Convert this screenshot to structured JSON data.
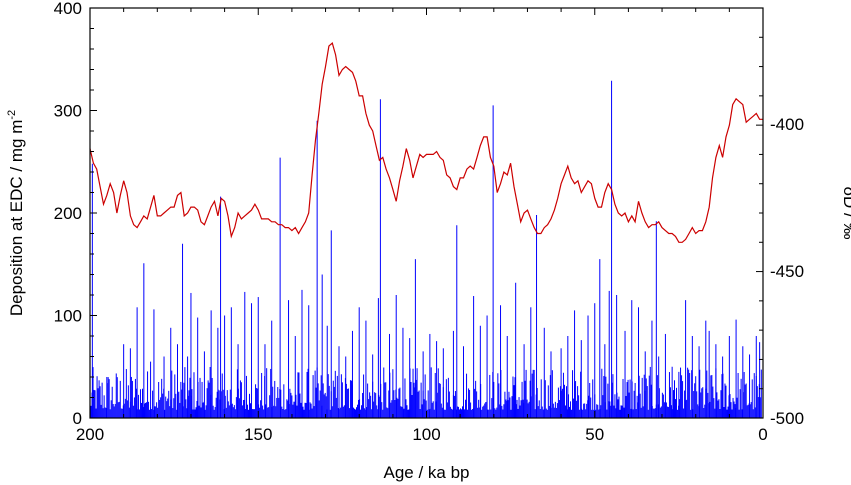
{
  "chart_data": {
    "type": "line",
    "xlabel": "Age / ka bp",
    "ylabel_left": {
      "text": "Deposition at EDC / mg m",
      "superscript": "-2"
    },
    "ylabel_right": "δD / ‰",
    "x_ticks": [
      "200",
      "150",
      "100",
      "50",
      "0"
    ],
    "y_left_ticks": [
      "0",
      "100",
      "200",
      "300",
      "400"
    ],
    "y_right_ticks": [
      "-400",
      "-450",
      "-500"
    ],
    "xlim": [
      200,
      0
    ],
    "ylim_left": [
      0,
      400
    ],
    "ylim_right": [
      -500,
      -360
    ],
    "grid": false,
    "colors": {
      "deposition": "#0000ff",
      "deltaD": "#cc0000",
      "axes": "#000000"
    },
    "series": [
      {
        "key": "deposition",
        "axis": "left",
        "style": "bars",
        "peaks": [
          [
            199.3,
            248
          ],
          [
            195,
            40
          ],
          [
            190,
            72
          ],
          [
            188,
            68
          ],
          [
            186,
            108
          ],
          [
            184,
            151
          ],
          [
            182,
            55
          ],
          [
            181,
            106
          ],
          [
            178,
            60
          ],
          [
            176,
            88
          ],
          [
            174,
            72
          ],
          [
            172.5,
            170
          ],
          [
            171,
            60
          ],
          [
            170,
            122
          ],
          [
            168,
            98
          ],
          [
            166,
            65
          ],
          [
            164,
            105
          ],
          [
            162,
            88
          ],
          [
            161.2,
            216
          ],
          [
            160,
            100
          ],
          [
            158,
            108
          ],
          [
            156,
            72
          ],
          [
            154,
            123
          ],
          [
            152,
            112
          ],
          [
            150,
            118
          ],
          [
            148,
            72
          ],
          [
            146,
            95
          ],
          [
            143.5,
            254
          ],
          [
            141,
            115
          ],
          [
            139,
            80
          ],
          [
            137,
            125
          ],
          [
            135,
            110
          ],
          [
            132.5,
            290
          ],
          [
            131,
            140
          ],
          [
            129.5,
            90
          ],
          [
            128.3,
            183
          ],
          [
            126,
            70
          ],
          [
            124,
            60
          ],
          [
            122,
            85
          ],
          [
            120,
            108
          ],
          [
            118,
            95
          ],
          [
            116,
            62
          ],
          [
            114.3,
            117
          ],
          [
            113.7,
            311
          ],
          [
            111,
            82
          ],
          [
            109,
            120
          ],
          [
            107,
            88
          ],
          [
            105,
            78
          ],
          [
            103.3,
            155
          ],
          [
            101,
            65
          ],
          [
            99,
            82
          ],
          [
            97,
            75
          ],
          [
            95,
            68
          ],
          [
            92,
            85
          ],
          [
            91,
            188
          ],
          [
            89,
            70
          ],
          [
            86,
            119
          ],
          [
            84,
            90
          ],
          [
            82,
            100
          ],
          [
            80.2,
            305
          ],
          [
            78,
            110
          ],
          [
            76,
            80
          ],
          [
            73.5,
            132
          ],
          [
            71,
            72
          ],
          [
            69,
            108
          ],
          [
            67.3,
            198
          ],
          [
            65,
            88
          ],
          [
            63,
            65
          ],
          [
            60,
            68
          ],
          [
            58,
            80
          ],
          [
            56,
            105
          ],
          [
            54,
            76
          ],
          [
            52,
            100
          ],
          [
            50,
            112
          ],
          [
            48.5,
            155
          ],
          [
            47,
            72
          ],
          [
            45.7,
            124
          ],
          [
            45,
            329
          ],
          [
            43.5,
            120
          ],
          [
            41,
            85
          ],
          [
            39,
            115
          ],
          [
            37,
            108
          ],
          [
            35,
            65
          ],
          [
            33,
            95
          ],
          [
            31.7,
            192
          ],
          [
            31,
            60
          ],
          [
            29,
            82
          ],
          [
            27,
            50
          ],
          [
            25,
            45
          ],
          [
            23,
            115
          ],
          [
            21,
            80
          ],
          [
            19,
            70
          ],
          [
            17,
            95
          ],
          [
            16,
            85
          ],
          [
            14,
            72
          ],
          [
            12,
            60
          ],
          [
            10,
            80
          ],
          [
            8,
            96
          ],
          [
            6,
            70
          ],
          [
            4,
            62
          ],
          [
            2,
            80
          ],
          [
            1,
            74
          ]
        ]
      },
      {
        "key": "deltaD",
        "axis": "right",
        "style": "line",
        "points": [
          [
            200,
            -408
          ],
          [
            199,
            -413
          ],
          [
            198,
            -415
          ],
          [
            197,
            -421
          ],
          [
            196,
            -427
          ],
          [
            195,
            -424
          ],
          [
            194,
            -420
          ],
          [
            193,
            -423
          ],
          [
            192,
            -430
          ],
          [
            191,
            -424
          ],
          [
            190,
            -419
          ],
          [
            189,
            -423
          ],
          [
            188,
            -431
          ],
          [
            187,
            -434
          ],
          [
            186,
            -435
          ],
          [
            185,
            -433
          ],
          [
            184,
            -431
          ],
          [
            183,
            -432
          ],
          [
            182,
            -428
          ],
          [
            181,
            -424
          ],
          [
            180,
            -431
          ],
          [
            179,
            -431
          ],
          [
            178,
            -430
          ],
          [
            177,
            -429
          ],
          [
            176,
            -428
          ],
          [
            175,
            -428
          ],
          [
            174,
            -424
          ],
          [
            173,
            -423
          ],
          [
            172,
            -431
          ],
          [
            171,
            -430
          ],
          [
            170,
            -428
          ],
          [
            169,
            -428
          ],
          [
            168,
            -429
          ],
          [
            167,
            -433
          ],
          [
            166,
            -434
          ],
          [
            165,
            -431
          ],
          [
            164,
            -428
          ],
          [
            163,
            -426
          ],
          [
            162,
            -431
          ],
          [
            161,
            -425
          ],
          [
            160,
            -426
          ],
          [
            159,
            -431
          ],
          [
            158,
            -438
          ],
          [
            157,
            -435
          ],
          [
            156,
            -430
          ],
          [
            155,
            -432
          ],
          [
            154,
            -431
          ],
          [
            153,
            -430
          ],
          [
            152,
            -429
          ],
          [
            151,
            -427
          ],
          [
            150,
            -429
          ],
          [
            149,
            -432
          ],
          [
            148,
            -432
          ],
          [
            147,
            -432
          ],
          [
            146,
            -433
          ],
          [
            145,
            -433
          ],
          [
            144,
            -434
          ],
          [
            143,
            -434
          ],
          [
            142,
            -435
          ],
          [
            141,
            -435
          ],
          [
            140,
            -436
          ],
          [
            139,
            -435
          ],
          [
            138,
            -437
          ],
          [
            137,
            -435
          ],
          [
            136,
            -433
          ],
          [
            135,
            -430
          ],
          [
            134,
            -417
          ],
          [
            133,
            -405
          ],
          [
            132,
            -396
          ],
          [
            131,
            -386
          ],
          [
            130,
            -380
          ],
          [
            129,
            -373
          ],
          [
            128,
            -372
          ],
          [
            127,
            -376
          ],
          [
            126,
            -383
          ],
          [
            125,
            -381
          ],
          [
            124,
            -380
          ],
          [
            123,
            -381
          ],
          [
            122,
            -382
          ],
          [
            121,
            -385
          ],
          [
            120,
            -390
          ],
          [
            119,
            -390
          ],
          [
            118,
            -396
          ],
          [
            117,
            -400
          ],
          [
            116,
            -402
          ],
          [
            115,
            -407
          ],
          [
            114,
            -412
          ],
          [
            113,
            -411
          ],
          [
            112,
            -415
          ],
          [
            111,
            -418
          ],
          [
            110,
            -422
          ],
          [
            109,
            -426
          ],
          [
            108,
            -419
          ],
          [
            107,
            -414
          ],
          [
            106,
            -408
          ],
          [
            105,
            -412
          ],
          [
            104,
            -418
          ],
          [
            103,
            -414
          ],
          [
            102,
            -410
          ],
          [
            101,
            -411
          ],
          [
            100,
            -410
          ],
          [
            99,
            -410
          ],
          [
            98,
            -410
          ],
          [
            97,
            -409
          ],
          [
            96,
            -411
          ],
          [
            95,
            -412
          ],
          [
            94,
            -417
          ],
          [
            93,
            -418
          ],
          [
            92,
            -421
          ],
          [
            91,
            -422
          ],
          [
            90,
            -418
          ],
          [
            89,
            -418
          ],
          [
            88,
            -415
          ],
          [
            87,
            -414
          ],
          [
            86,
            -415
          ],
          [
            85,
            -411
          ],
          [
            84,
            -407
          ],
          [
            83,
            -404
          ],
          [
            82,
            -404
          ],
          [
            81,
            -411
          ],
          [
            80,
            -414
          ],
          [
            79,
            -423
          ],
          [
            78,
            -420
          ],
          [
            77,
            -416
          ],
          [
            76,
            -417
          ],
          [
            75,
            -413
          ],
          [
            74,
            -421
          ],
          [
            73,
            -427
          ],
          [
            72,
            -433
          ],
          [
            71,
            -430
          ],
          [
            70,
            -429
          ],
          [
            69,
            -432
          ],
          [
            68,
            -435
          ],
          [
            67,
            -437
          ],
          [
            66,
            -437
          ],
          [
            65,
            -435
          ],
          [
            64,
            -434
          ],
          [
            63,
            -432
          ],
          [
            62,
            -429
          ],
          [
            61,
            -425
          ],
          [
            60,
            -420
          ],
          [
            59,
            -417
          ],
          [
            58,
            -414
          ],
          [
            57,
            -418
          ],
          [
            56,
            -420
          ],
          [
            55,
            -419
          ],
          [
            54,
            -423
          ],
          [
            53,
            -421
          ],
          [
            52,
            -419
          ],
          [
            51,
            -420
          ],
          [
            50,
            -425
          ],
          [
            49,
            -428
          ],
          [
            48,
            -428
          ],
          [
            47,
            -423
          ],
          [
            46,
            -420
          ],
          [
            45,
            -422
          ],
          [
            44,
            -427
          ],
          [
            43,
            -430
          ],
          [
            42,
            -431
          ],
          [
            41,
            -430
          ],
          [
            40,
            -433
          ],
          [
            39,
            -431
          ],
          [
            38,
            -433
          ],
          [
            37,
            -426
          ],
          [
            36,
            -430
          ],
          [
            35,
            -433
          ],
          [
            34,
            -435
          ],
          [
            33,
            -434
          ],
          [
            32,
            -434
          ],
          [
            31,
            -433
          ],
          [
            30,
            -435
          ],
          [
            29,
            -436
          ],
          [
            28,
            -437
          ],
          [
            27,
            -437
          ],
          [
            26,
            -438
          ],
          [
            25,
            -440
          ],
          [
            24,
            -440
          ],
          [
            23,
            -439
          ],
          [
            22,
            -437
          ],
          [
            21,
            -435
          ],
          [
            20,
            -437
          ],
          [
            19,
            -436
          ],
          [
            18,
            -436
          ],
          [
            17,
            -433
          ],
          [
            16,
            -428
          ],
          [
            15,
            -418
          ],
          [
            14,
            -411
          ],
          [
            13,
            -407
          ],
          [
            12,
            -411
          ],
          [
            11,
            -404
          ],
          [
            10,
            -400
          ],
          [
            9,
            -393
          ],
          [
            8,
            -391
          ],
          [
            7,
            -392
          ],
          [
            6,
            -393
          ],
          [
            5,
            -399
          ],
          [
            4,
            -398
          ],
          [
            3,
            -397
          ],
          [
            2,
            -396
          ],
          [
            1,
            -398
          ],
          [
            0,
            -398
          ]
        ]
      }
    ]
  }
}
